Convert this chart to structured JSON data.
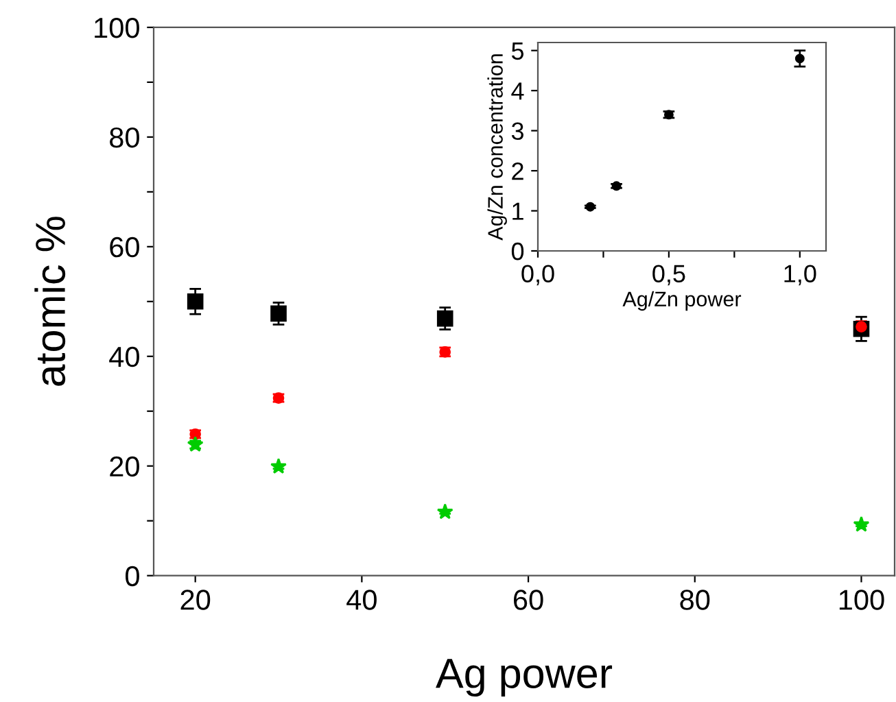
{
  "chart_data": [
    {
      "type": "scatter",
      "xlabel": "Ag power",
      "ylabel": "atomic %",
      "xlim": [
        15,
        104
      ],
      "ylim": [
        0,
        100
      ],
      "xticks": [
        20,
        40,
        60,
        80,
        100
      ],
      "yticks": [
        0,
        {
          "value": 10,
          "label": null
        },
        20,
        {
          "value": 30,
          "label": null
        },
        40,
        {
          "value": 50,
          "label": null
        },
        60,
        {
          "value": 70,
          "label": null
        },
        80,
        {
          "value": 90,
          "label": null
        },
        100
      ],
      "grid": false,
      "x": [
        20,
        30,
        50,
        100
      ],
      "series": [
        {
          "color": "#000000",
          "marker": "square",
          "values": [
            50,
            47.8,
            46.9,
            45
          ],
          "errors": [
            2.3,
            2,
            2,
            2.2
          ]
        },
        {
          "color": "#ff0000",
          "marker": "circle",
          "values": [
            25.8,
            32.4,
            40.8,
            45.4
          ],
          "errors": [
            0.7,
            0.7,
            0.8,
            1
          ]
        },
        {
          "color": "#00cc00",
          "marker": "star",
          "values": [
            23.9,
            19.9,
            11.6,
            9.3
          ],
          "errors": [
            0.7,
            0.4,
            0.3,
            0.3
          ]
        }
      ]
    },
    {
      "type": "scatter",
      "xlabel": "Ag/Zn power",
      "ylabel": "Ag/Zn concentration",
      "xlim": [
        0,
        1.1
      ],
      "ylim": [
        0,
        5.2
      ],
      "xticks": [
        {
          "value": 0,
          "label": "0,0"
        },
        {
          "value": 0.25,
          "label": null
        },
        {
          "value": 0.5,
          "label": "0,5"
        },
        {
          "value": 0.75,
          "label": null
        },
        {
          "value": 1,
          "label": "1,0"
        }
      ],
      "yticks": [
        0,
        1,
        2,
        3,
        4,
        5
      ],
      "grid": false,
      "x": [
        0.2,
        0.3,
        0.5,
        1.0
      ],
      "series": [
        {
          "color": "#000000",
          "marker": "circle",
          "values": [
            1.1,
            1.62,
            3.4,
            4.8
          ],
          "errors": [
            0.03,
            0.05,
            0.08,
            0.2
          ]
        }
      ]
    }
  ]
}
